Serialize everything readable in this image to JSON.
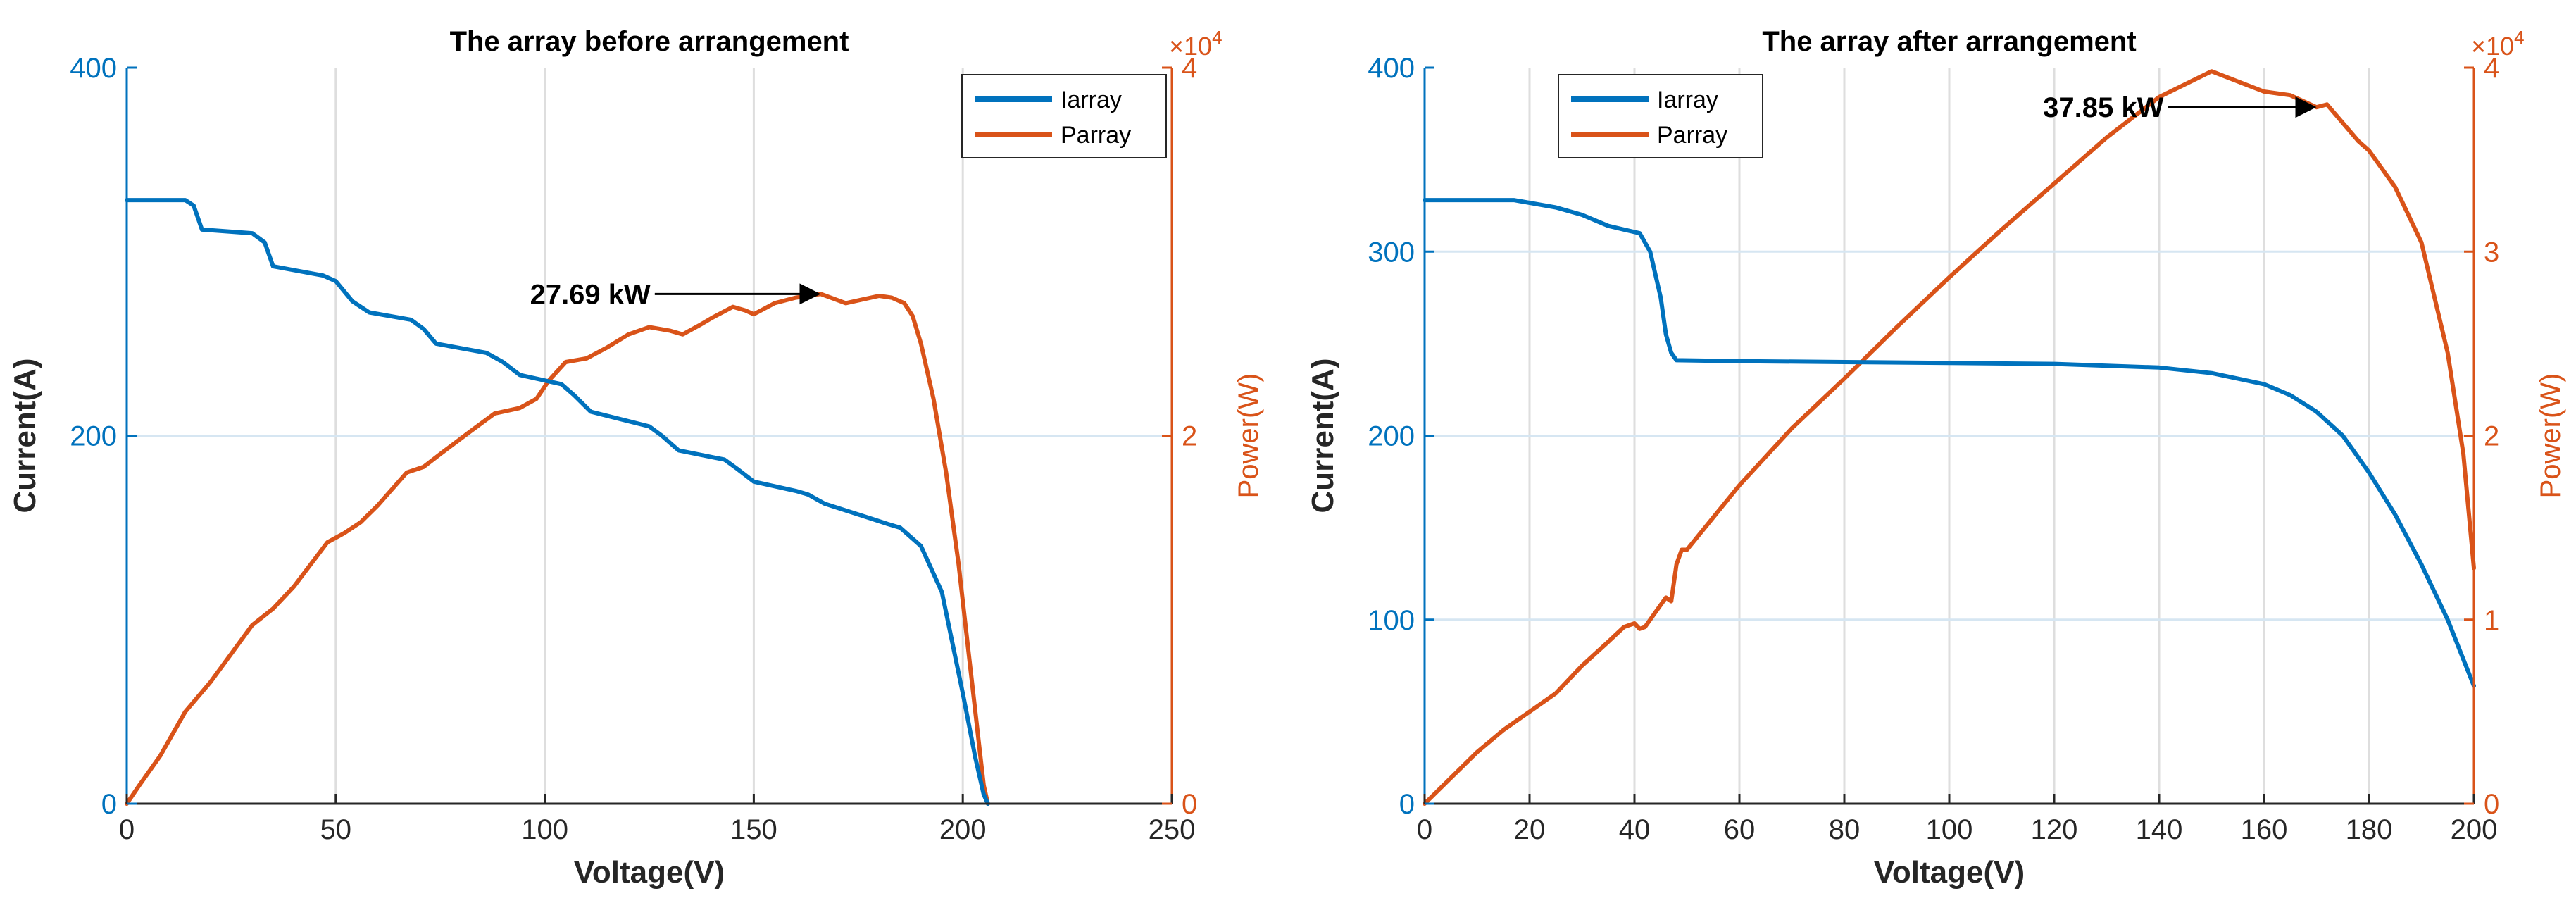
{
  "colors": {
    "current": "#0072BD",
    "power": "#D95319",
    "axis_text": "#262626",
    "grid": "#dedede",
    "annotation": "#000000"
  },
  "chart_data": [
    {
      "type": "line",
      "title": "The array before arrangement",
      "xlabel": "Voltage(V)",
      "ylabel_left": "Current(A)",
      "ylabel_right": "Power(W)",
      "right_exponent": "×10^4",
      "right_exponent_base": "×10",
      "right_exponent_power": "4",
      "xlim": [
        0,
        250
      ],
      "ylim_left": [
        0,
        400
      ],
      "ylim_right": [
        0,
        4
      ],
      "xticks": [
        0,
        50,
        100,
        150,
        200,
        250
      ],
      "xtick_labels": [
        "0",
        "50",
        "100",
        "150",
        "200",
        "250"
      ],
      "yticks_left": [
        0,
        200,
        400
      ],
      "ytick_labels_left": [
        "0",
        "200",
        "400"
      ],
      "yticks_right": [
        0,
        2,
        4
      ],
      "ytick_labels_right": [
        "0",
        "2",
        "4"
      ],
      "grid": true,
      "legend": {
        "position": "top-right",
        "entries": [
          "Iarray",
          "Parray"
        ]
      },
      "series": [
        {
          "name": "Iarray",
          "axis": "left",
          "x": [
            0,
            14,
            16,
            18,
            30,
            33,
            35,
            47,
            50,
            54,
            58,
            68,
            71,
            74,
            86,
            90,
            94,
            104,
            107,
            111,
            125,
            128,
            132,
            143,
            146,
            150,
            160,
            163,
            167,
            178,
            182,
            185,
            190,
            195,
            200,
            203,
            205,
            206
          ],
          "y": [
            328,
            328,
            325,
            312,
            310,
            305,
            292,
            287,
            284,
            273,
            267,
            263,
            258,
            250,
            245,
            240,
            233,
            228,
            222,
            213,
            205,
            200,
            192,
            187,
            182,
            175,
            170,
            168,
            163,
            155,
            152,
            150,
            140,
            115,
            60,
            25,
            5,
            0
          ]
        },
        {
          "name": "Parray",
          "axis": "right",
          "x": [
            0,
            3,
            8,
            14,
            20,
            30,
            35,
            40,
            48,
            52,
            56,
            60,
            67,
            71,
            75,
            82,
            88,
            94,
            98,
            101,
            105,
            110,
            115,
            120,
            125,
            130,
            133,
            137,
            140,
            145,
            148,
            150,
            155,
            160,
            166,
            172,
            176,
            180,
            183,
            186,
            188,
            190,
            193,
            196,
            199,
            201,
            203,
            204,
            205,
            206
          ],
          "y": [
            0,
            0.1,
            0.26,
            0.5,
            0.66,
            0.97,
            1.06,
            1.18,
            1.42,
            1.47,
            1.53,
            1.62,
            1.8,
            1.83,
            1.9,
            2.02,
            2.12,
            2.15,
            2.2,
            2.3,
            2.4,
            2.42,
            2.48,
            2.55,
            2.59,
            2.57,
            2.55,
            2.6,
            2.64,
            2.7,
            2.68,
            2.66,
            2.72,
            2.75,
            2.77,
            2.72,
            2.74,
            2.76,
            2.75,
            2.72,
            2.65,
            2.5,
            2.2,
            1.8,
            1.3,
            0.9,
            0.5,
            0.3,
            0.1,
            0
          ]
        }
      ],
      "annotations": [
        {
          "text": "27.69 kW",
          "arrow_from": [
            128,
            2.77
          ],
          "arrow_to": [
            166,
            2.77
          ]
        }
      ]
    },
    {
      "type": "line",
      "title": "The array after arrangement",
      "xlabel": "Voltage(V)",
      "ylabel_left": "Current(A)",
      "ylabel_right": "Power(W)",
      "right_exponent": "×10^4",
      "right_exponent_base": "×10",
      "right_exponent_power": "4",
      "xlim": [
        0,
        200
      ],
      "ylim_left": [
        0,
        400
      ],
      "ylim_right": [
        0,
        4
      ],
      "xticks": [
        0,
        20,
        40,
        60,
        80,
        100,
        120,
        140,
        160,
        180,
        200
      ],
      "xtick_labels": [
        "0",
        "20",
        "40",
        "60",
        "80",
        "100",
        "120",
        "140",
        "160",
        "180",
        "200"
      ],
      "yticks_left": [
        0,
        100,
        200,
        300,
        400
      ],
      "ytick_labels_left": [
        "0",
        "100",
        "200",
        "300",
        "400"
      ],
      "yticks_right": [
        0,
        1,
        2,
        3,
        4
      ],
      "ytick_labels_right": [
        "0",
        "1",
        "2",
        "3",
        "4"
      ],
      "grid": true,
      "legend": {
        "position": "top-left",
        "entries": [
          "Iarray",
          "Parray"
        ]
      },
      "series": [
        {
          "name": "Iarray",
          "axis": "left",
          "x": [
            0,
            17,
            25,
            30,
            35,
            38,
            41,
            43,
            45,
            46,
            47,
            48,
            60,
            80,
            100,
            120,
            140,
            150,
            160,
            165,
            170,
            175,
            180,
            185,
            190,
            195,
            200
          ],
          "y": [
            328,
            328,
            324,
            320,
            314,
            312,
            310,
            300,
            275,
            255,
            245,
            241,
            240.5,
            240,
            239.5,
            239,
            237,
            234,
            228,
            222,
            213,
            200,
            180,
            157,
            130,
            100,
            64
          ]
        },
        {
          "name": "Parray",
          "axis": "right",
          "x": [
            0,
            5,
            10,
            15,
            20,
            25,
            30,
            35,
            38,
            40,
            41,
            42,
            44,
            46,
            47,
            48,
            49,
            50,
            60,
            70,
            80,
            90,
            100,
            110,
            120,
            130,
            140,
            150,
            160,
            165,
            170,
            172,
            175,
            178,
            180,
            185,
            190,
            195,
            198,
            200
          ],
          "y": [
            0,
            0.14,
            0.28,
            0.4,
            0.5,
            0.6,
            0.75,
            0.88,
            0.96,
            0.98,
            0.95,
            0.96,
            1.04,
            1.12,
            1.1,
            1.3,
            1.38,
            1.38,
            1.73,
            2.04,
            2.31,
            2.59,
            2.86,
            3.12,
            3.37,
            3.62,
            3.84,
            3.98,
            3.87,
            3.85,
            3.785,
            3.8,
            3.7,
            3.6,
            3.55,
            3.35,
            3.05,
            2.45,
            1.9,
            1.28
          ]
        }
      ],
      "annotations": [
        {
          "text": "37.85 kW",
          "arrow_from": [
            143,
            3.785
          ],
          "arrow_to": [
            170,
            3.785
          ]
        }
      ]
    }
  ]
}
